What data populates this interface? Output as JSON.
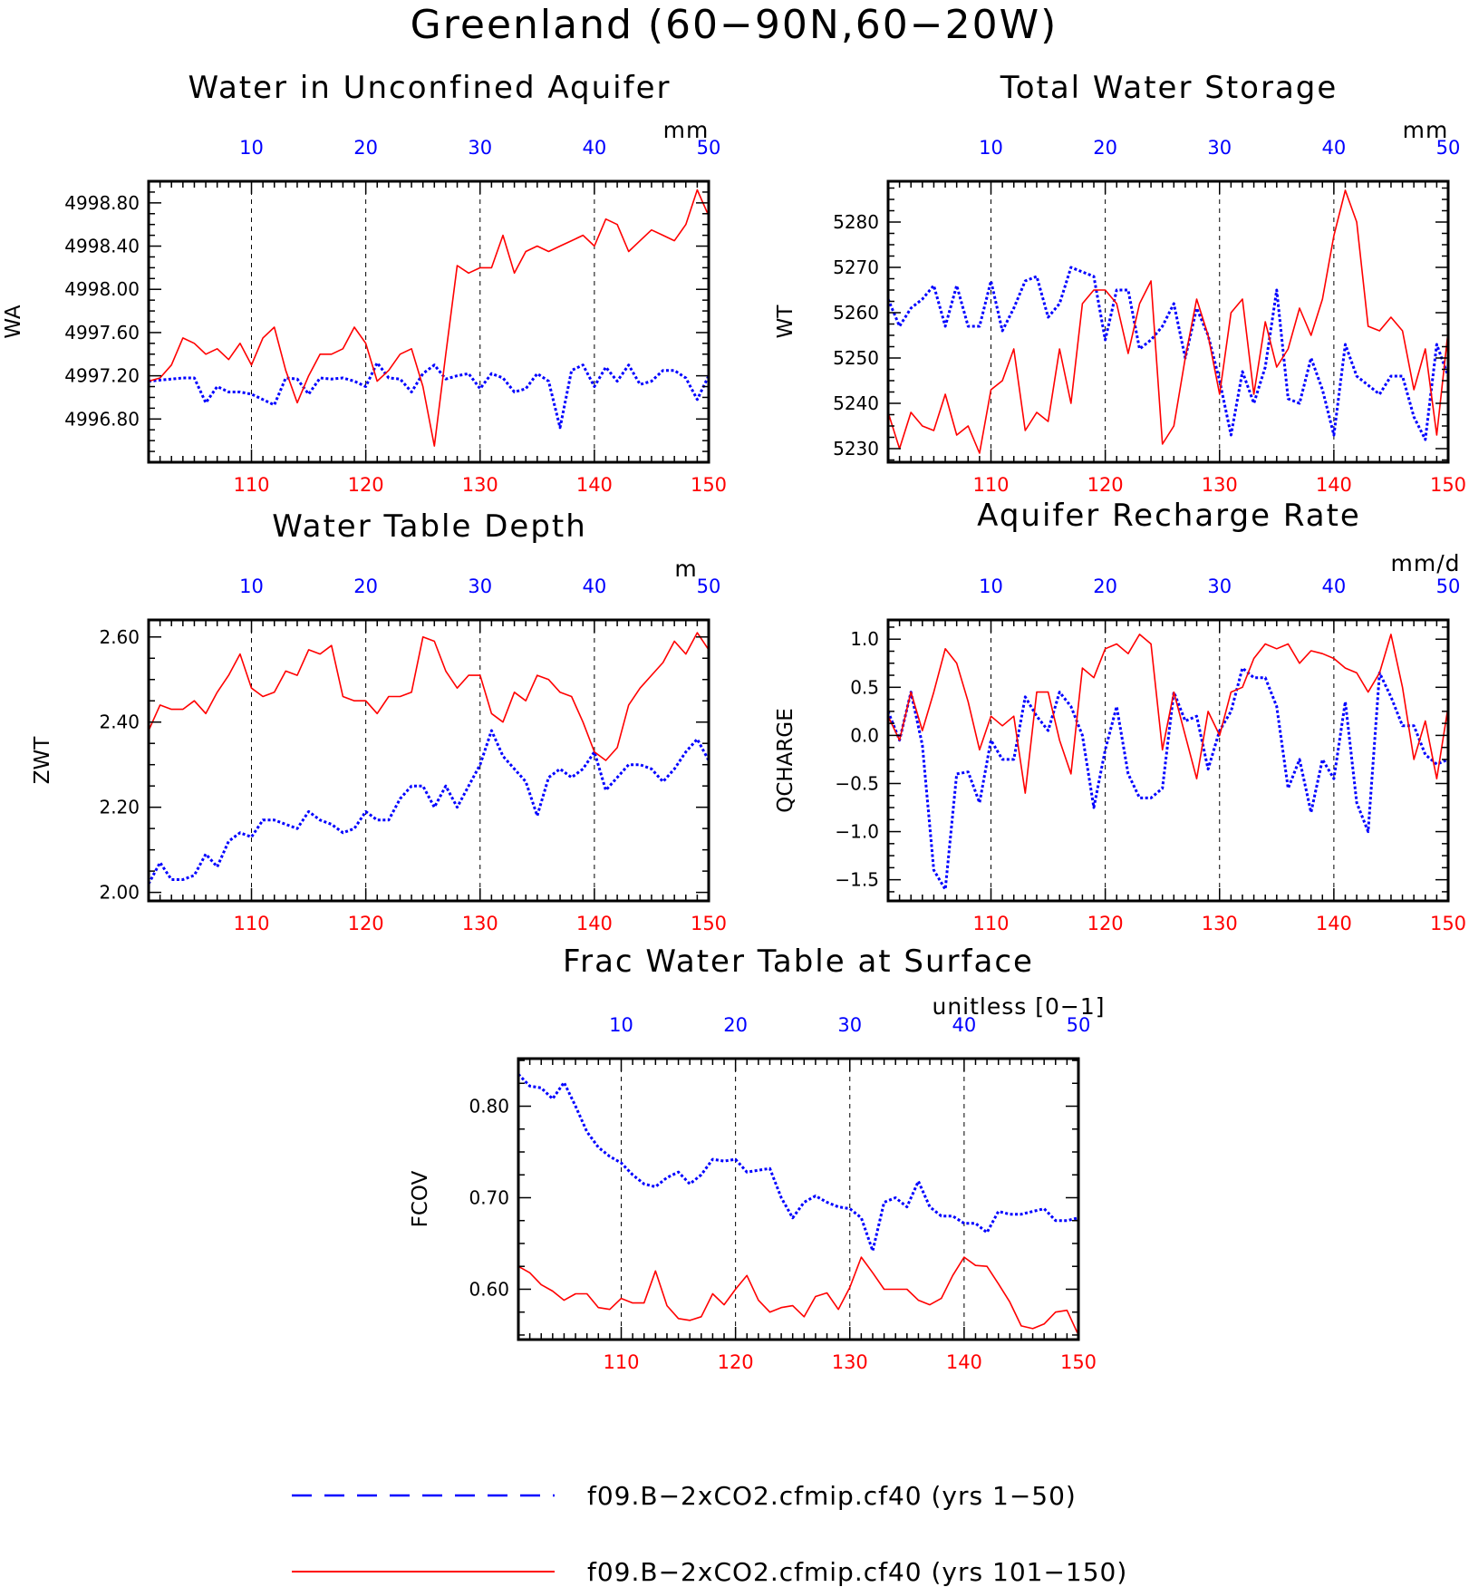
{
  "title": "Greenland (60−90N,60−20W)",
  "colors": {
    "series_blue": "#0000ff",
    "series_red": "#ff0000",
    "axis": "#000000"
  },
  "legend": {
    "entries": [
      {
        "label": "f09.B−2xCO2.cfmip.cf40 (yrs 1−50)",
        "color": "#0000ff",
        "style": "dashed"
      },
      {
        "label": "f09.B−2xCO2.cfmip.cf40 (yrs 101−150)",
        "color": "#ff0000",
        "style": "solid"
      }
    ]
  },
  "chart_data": [
    {
      "type": "line",
      "title": "Water in Unconfined Aquifer",
      "ylabel": "WA",
      "units": "mm",
      "x_bottom": {
        "range": [
          101,
          150
        ],
        "ticks": [
          "110",
          "120",
          "130",
          "140",
          "150"
        ]
      },
      "x_top": {
        "range": [
          1,
          50
        ],
        "ticks": [
          "10",
          "20",
          "30",
          "40",
          "50"
        ]
      },
      "ylim": [
        4996.4,
        4999.0
      ],
      "yticks": [
        "4996.80",
        "4997.20",
        "4997.60",
        "4998.00",
        "4998.40",
        "4998.80"
      ],
      "grid": "vertical dashed at major x ticks",
      "series": [
        {
          "values": [
            4997.15,
            4997.16,
            4997.17,
            4997.18,
            4997.18,
            4996.95,
            4997.1,
            4997.05,
            4997.05,
            4997.03,
            4996.98,
            4996.93,
            4997.18,
            4997.17,
            4997.03,
            4997.18,
            4997.17,
            4997.18,
            4997.15,
            4997.1,
            4997.32,
            4997.18,
            4997.17,
            4997.05,
            4997.22,
            4997.3,
            4997.17,
            4997.2,
            4997.22,
            4997.08,
            4997.22,
            4997.18,
            4997.05,
            4997.08,
            4997.22,
            4997.15,
            4996.72,
            4997.25,
            4997.3,
            4997.1,
            4997.28,
            4997.15,
            4997.3,
            4997.12,
            4997.15,
            4997.25,
            4997.25,
            4997.18,
            4996.98,
            4997.2
          ]
        },
        {
          "values": [
            4997.15,
            4997.18,
            4997.3,
            4997.55,
            4997.5,
            4997.4,
            4997.45,
            4997.35,
            4997.5,
            4997.3,
            4997.55,
            4997.65,
            4997.25,
            4996.95,
            4997.2,
            4997.4,
            4997.4,
            4997.45,
            4997.65,
            4997.5,
            4997.15,
            4997.25,
            4997.4,
            4997.45,
            4997.1,
            4996.55,
            4997.4,
            4998.22,
            4998.15,
            4998.2,
            4998.2,
            4998.5,
            4998.15,
            4998.35,
            4998.4,
            4998.35,
            4998.4,
            4998.45,
            4998.5,
            4998.4,
            4998.65,
            4998.6,
            4998.35,
            4998.45,
            4998.55,
            4998.5,
            4998.45,
            4998.6,
            4998.92,
            4998.68
          ]
        }
      ]
    },
    {
      "type": "line",
      "title": "Total Water Storage",
      "ylabel": "WT",
      "units": "mm",
      "x_bottom": {
        "range": [
          101,
          150
        ],
        "ticks": [
          "110",
          "120",
          "130",
          "140",
          "150"
        ]
      },
      "x_top": {
        "range": [
          1,
          50
        ],
        "ticks": [
          "10",
          "20",
          "30",
          "40",
          "50"
        ]
      },
      "ylim": [
        5227,
        5289
      ],
      "yticks": [
        "5230",
        "5240",
        "5250",
        "5260",
        "5270",
        "5280"
      ],
      "grid": "vertical dashed at major x ticks",
      "series": [
        {
          "values": [
            5263,
            5257,
            5261,
            5263,
            5266,
            5257,
            5266,
            5257,
            5257,
            5267,
            5256,
            5261,
            5267,
            5268,
            5259,
            5262,
            5270,
            5269,
            5268,
            5254,
            5265,
            5265,
            5252,
            5254,
            5257,
            5262,
            5250,
            5261,
            5255,
            5245,
            5233,
            5247,
            5240,
            5248,
            5265,
            5241,
            5240,
            5250,
            5243,
            5233,
            5253,
            5246,
            5244,
            5242,
            5246,
            5246,
            5237,
            5232,
            5253,
            5246
          ]
        },
        {
          "values": [
            5238,
            5230,
            5238,
            5235,
            5234,
            5242,
            5233,
            5235,
            5229,
            5243,
            5245,
            5252,
            5234,
            5238,
            5236,
            5252,
            5240,
            5262,
            5265,
            5265,
            5262,
            5251,
            5262,
            5267,
            5231,
            5235,
            5250,
            5263,
            5255,
            5242,
            5260,
            5263,
            5242,
            5258,
            5248,
            5252,
            5261,
            5255,
            5263,
            5277,
            5287,
            5280,
            5257,
            5256,
            5259,
            5256,
            5243,
            5252,
            5233,
            5256
          ]
        }
      ]
    },
    {
      "type": "line",
      "title": "Water Table Depth",
      "ylabel": "ZWT",
      "units": "m",
      "x_bottom": {
        "range": [
          101,
          150
        ],
        "ticks": [
          "110",
          "120",
          "130",
          "140",
          "150"
        ]
      },
      "x_top": {
        "range": [
          1,
          50
        ],
        "ticks": [
          "10",
          "20",
          "30",
          "40",
          "50"
        ]
      },
      "ylim": [
        1.98,
        2.64
      ],
      "yticks": [
        "2.00",
        "2.20",
        "2.40",
        "2.60"
      ],
      "grid": "vertical dashed at major x ticks",
      "series": [
        {
          "values": [
            2.02,
            2.07,
            2.03,
            2.03,
            2.04,
            2.09,
            2.06,
            2.12,
            2.14,
            2.13,
            2.17,
            2.17,
            2.16,
            2.15,
            2.19,
            2.17,
            2.16,
            2.14,
            2.15,
            2.19,
            2.17,
            2.17,
            2.22,
            2.25,
            2.25,
            2.2,
            2.25,
            2.2,
            2.25,
            2.3,
            2.38,
            2.32,
            2.29,
            2.26,
            2.18,
            2.27,
            2.29,
            2.27,
            2.29,
            2.33,
            2.24,
            2.27,
            2.3,
            2.3,
            2.29,
            2.26,
            2.29,
            2.33,
            2.36,
            2.31
          ]
        },
        {
          "values": [
            2.38,
            2.44,
            2.43,
            2.43,
            2.45,
            2.42,
            2.47,
            2.51,
            2.56,
            2.48,
            2.46,
            2.47,
            2.52,
            2.51,
            2.57,
            2.56,
            2.58,
            2.46,
            2.45,
            2.45,
            2.42,
            2.46,
            2.46,
            2.47,
            2.6,
            2.59,
            2.52,
            2.48,
            2.51,
            2.51,
            2.42,
            2.4,
            2.47,
            2.45,
            2.51,
            2.5,
            2.47,
            2.46,
            2.4,
            2.33,
            2.31,
            2.34,
            2.44,
            2.48,
            2.51,
            2.54,
            2.59,
            2.56,
            2.61,
            2.57
          ]
        }
      ]
    },
    {
      "type": "line",
      "title": "Aquifer Recharge Rate",
      "ylabel": "QCHARGE",
      "units": "mm/d",
      "x_bottom": {
        "range": [
          101,
          150
        ],
        "ticks": [
          "110",
          "120",
          "130",
          "140",
          "150"
        ]
      },
      "x_top": {
        "range": [
          1,
          50
        ],
        "ticks": [
          "10",
          "20",
          "30",
          "40",
          "50"
        ]
      },
      "ylim": [
        -1.72,
        1.2
      ],
      "yticks": [
        "-1.5",
        "-1.0",
        "-0.5",
        "0.0",
        "0.5",
        "1.0"
      ],
      "grid": "vertical dashed at major x ticks",
      "series": [
        {
          "values": [
            0.25,
            -0.05,
            0.45,
            -0.1,
            -1.4,
            -1.6,
            -0.4,
            -0.38,
            -0.7,
            -0.05,
            -0.25,
            -0.25,
            0.4,
            0.2,
            0.05,
            0.45,
            0.3,
            0.0,
            -0.75,
            -0.15,
            0.3,
            -0.4,
            -0.65,
            -0.65,
            -0.55,
            0.45,
            0.15,
            0.2,
            -0.35,
            0.05,
            0.25,
            0.7,
            0.6,
            0.6,
            0.3,
            -0.55,
            -0.25,
            -0.8,
            -0.25,
            -0.45,
            0.35,
            -0.7,
            -1.0,
            0.65,
            0.4,
            0.1,
            0.1,
            -0.2,
            -0.3,
            -0.25
          ]
        },
        {
          "values": [
            0.2,
            -0.05,
            0.45,
            0.05,
            0.45,
            0.9,
            0.75,
            0.35,
            -0.15,
            0.2,
            0.1,
            0.2,
            -0.6,
            0.45,
            0.45,
            -0.05,
            -0.4,
            0.7,
            0.6,
            0.9,
            0.95,
            0.85,
            1.05,
            0.95,
            -0.15,
            0.45,
            0.0,
            -0.45,
            0.25,
            0.0,
            0.45,
            0.5,
            0.8,
            0.95,
            0.9,
            0.95,
            0.75,
            0.88,
            0.85,
            0.8,
            0.7,
            0.65,
            0.45,
            0.65,
            1.05,
            0.5,
            -0.25,
            0.15,
            -0.45,
            0.3
          ]
        }
      ]
    },
    {
      "type": "line",
      "title": "Frac Water Table at Surface",
      "ylabel": "FCOV",
      "units": "unitless [0−1]",
      "x_bottom": {
        "range": [
          101,
          150
        ],
        "ticks": [
          "110",
          "120",
          "130",
          "140",
          "150"
        ]
      },
      "x_top": {
        "range": [
          1,
          50
        ],
        "ticks": [
          "10",
          "20",
          "30",
          "40",
          "50"
        ]
      },
      "ylim": [
        0.545,
        0.852
      ],
      "yticks": [
        "0.60",
        "0.70",
        "0.80"
      ],
      "grid": "vertical dashed at major x ticks",
      "series": [
        {
          "values": [
            0.835,
            0.822,
            0.82,
            0.808,
            0.826,
            0.8,
            0.772,
            0.755,
            0.745,
            0.738,
            0.725,
            0.715,
            0.712,
            0.722,
            0.728,
            0.715,
            0.725,
            0.742,
            0.74,
            0.742,
            0.728,
            0.73,
            0.732,
            0.7,
            0.678,
            0.695,
            0.702,
            0.695,
            0.69,
            0.688,
            0.678,
            0.642,
            0.695,
            0.7,
            0.69,
            0.718,
            0.69,
            0.68,
            0.68,
            0.672,
            0.672,
            0.662,
            0.685,
            0.682,
            0.682,
            0.685,
            0.688,
            0.675,
            0.675,
            0.678
          ]
        },
        {
          "values": [
            0.625,
            0.618,
            0.605,
            0.598,
            0.588,
            0.595,
            0.595,
            0.58,
            0.578,
            0.59,
            0.585,
            0.585,
            0.62,
            0.582,
            0.568,
            0.566,
            0.57,
            0.595,
            0.583,
            0.6,
            0.615,
            0.588,
            0.575,
            0.58,
            0.582,
            0.57,
            0.592,
            0.596,
            0.578,
            0.602,
            0.635,
            0.618,
            0.6,
            0.6,
            0.6,
            0.588,
            0.583,
            0.59,
            0.615,
            0.635,
            0.626,
            0.625,
            0.606,
            0.586,
            0.56,
            0.557,
            0.562,
            0.575,
            0.577,
            0.55
          ]
        }
      ]
    }
  ]
}
